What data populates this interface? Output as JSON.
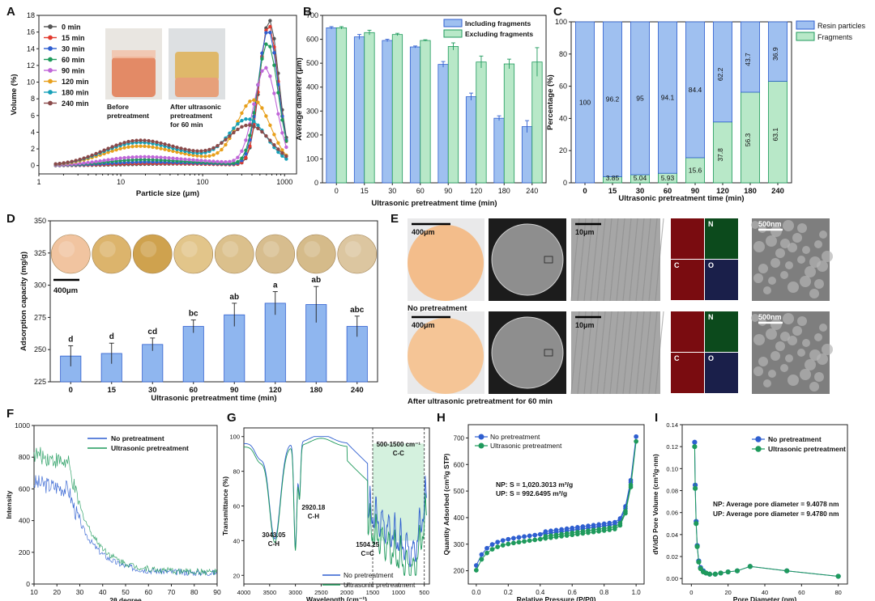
{
  "colors": {
    "blue": "#2f5fd0",
    "blue_fill": "#9fc0f0",
    "green": "#1f9a5c",
    "green_fill": "#b8e8c8",
    "gray": "#555555",
    "red": "#e23a2e",
    "cyan": "#16a0b8",
    "violet": "#c066d8",
    "orange": "#e8a01c",
    "teal": "#2aa89a",
    "maroon": "#8a4a4a",
    "navy": "#3a55b8"
  },
  "panels": {
    "A": {
      "letter": "A",
      "photo_labels": [
        "Before\npretreatment",
        "After ultrasonic\npretreatment\nfor 60 min"
      ]
    },
    "B": {
      "letter": "B"
    },
    "C": {
      "letter": "C"
    },
    "D": {
      "letter": "D",
      "scale_bar": "400μm"
    },
    "E": {
      "letter": "E",
      "rows": [
        {
          "caption": "No pretreatment",
          "scale1": "400μm",
          "scale2": "10μm",
          "scale3": "500nm"
        },
        {
          "caption": "After ultrasonic pretreatment for 60 min",
          "scale1": "400μm",
          "scale2": "10μm",
          "scale3": "500nm"
        }
      ],
      "eds_labels": [
        "N",
        "C",
        "O"
      ]
    },
    "F": {
      "letter": "F"
    },
    "G": {
      "letter": "G"
    },
    "H": {
      "letter": "H"
    },
    "I": {
      "letter": "I"
    }
  },
  "chart_data": [
    {
      "id": "A",
      "type": "line",
      "title": "",
      "xlabel": "Particle size (μm)",
      "ylabel": "Volume (%)",
      "xscale": "log",
      "xlim": [
        1,
        1400
      ],
      "ylim": [
        -1,
        18
      ],
      "x_ticks": [
        1,
        10,
        100,
        1000
      ],
      "x_tick_labels": [
        "1",
        "10",
        "100",
        "1000"
      ],
      "y_ticks": [
        0,
        2,
        4,
        6,
        8,
        10,
        12,
        14,
        16,
        18
      ],
      "legend": "top-left",
      "series": [
        {
          "name": "0 min",
          "color": "#555555",
          "base": 0.2,
          "hump": 0.0,
          "peak": 17.4,
          "px": 650,
          "w": 0.09
        },
        {
          "name": "15 min",
          "color": "#e23a2e",
          "base": 0.2,
          "hump": 0.1,
          "peak": 16.8,
          "px": 640,
          "w": 0.09
        },
        {
          "name": "30 min",
          "color": "#2f5fd0",
          "base": 0.3,
          "hump": 0.2,
          "peak": 16.2,
          "px": 630,
          "w": 0.095
        },
        {
          "name": "60 min",
          "color": "#1f9a5c",
          "base": 0.4,
          "hump": 0.4,
          "peak": 14.6,
          "px": 620,
          "w": 0.1
        },
        {
          "name": "90 min",
          "color": "#c066d8",
          "base": 0.6,
          "hump": 0.6,
          "peak": 11.6,
          "px": 580,
          "w": 0.11
        },
        {
          "name": "120 min",
          "color": "#e8a01c",
          "base": 1.0,
          "hump": 1.6,
          "peak": 7.5,
          "px": 420,
          "w": 0.16
        },
        {
          "name": "180 min",
          "color": "#16a0b8",
          "base": 1.2,
          "hump": 1.9,
          "peak": 5.1,
          "px": 360,
          "w": 0.18
        },
        {
          "name": "240 min",
          "color": "#8a4a4a",
          "base": 1.4,
          "hump": 2.0,
          "peak": 4.3,
          "px": 380,
          "w": 0.2
        }
      ]
    },
    {
      "id": "B",
      "type": "bar",
      "xlabel": "Ultrasonic pretreatment time (min)",
      "ylabel": "Average diameter (μm)",
      "ylim": [
        0,
        700
      ],
      "y_ticks": [
        0,
        100,
        200,
        300,
        400,
        500,
        600,
        700
      ],
      "categories": [
        "0",
        "15",
        "30",
        "60",
        "90",
        "120",
        "180",
        "240"
      ],
      "legend": "top-right",
      "series": [
        {
          "name": "Including fragments",
          "values": [
            648,
            610,
            595,
            568,
            495,
            360,
            270,
            235
          ],
          "err": [
            5,
            10,
            5,
            4,
            12,
            15,
            10,
            25
          ]
        },
        {
          "name": "Excluding fragments",
          "values": [
            648,
            628,
            620,
            595,
            570,
            505,
            497,
            505
          ],
          "err": [
            5,
            10,
            5,
            3,
            15,
            25,
            20,
            60
          ]
        }
      ]
    },
    {
      "id": "C",
      "type": "bar",
      "stacked": true,
      "xlabel": "Ultrasonic pretreatment time (min)",
      "ylabel": "Percentage (%)",
      "ylim": [
        0,
        100
      ],
      "y_ticks": [
        0,
        20,
        40,
        60,
        80,
        100
      ],
      "categories": [
        "0",
        "15",
        "30",
        "60",
        "90",
        "120",
        "180",
        "240"
      ],
      "legend": "top-right",
      "series": [
        {
          "name": "Resin particles",
          "values": [
            100,
            96.2,
            95,
            94.1,
            84.4,
            62.2,
            43.7,
            36.9
          ],
          "labels": [
            "100",
            "96.2",
            "95",
            "94.1",
            "84.4",
            "62.2",
            "43.7",
            "36.9"
          ]
        },
        {
          "name": "Fragments",
          "values": [
            0,
            3.85,
            5.04,
            5.93,
            15.6,
            37.8,
            56.3,
            63.1
          ],
          "labels": [
            "",
            "3.85",
            "5.04",
            "5.93",
            "15.6",
            "37.8",
            "56.3",
            "63.1"
          ]
        }
      ]
    },
    {
      "id": "D",
      "type": "bar",
      "xlabel": "Ultrasonic pretreatment time (min)",
      "ylabel": "Adsorption capacity (mg/g)",
      "ylim": [
        225,
        350
      ],
      "y_ticks": [
        225,
        250,
        275,
        300,
        325,
        350
      ],
      "categories": [
        "0",
        "15",
        "30",
        "60",
        "90",
        "120",
        "180",
        "240"
      ],
      "values": [
        245,
        247,
        254,
        268,
        277,
        286,
        285,
        268
      ],
      "err": [
        8,
        8,
        5,
        5,
        9,
        9,
        14,
        8
      ],
      "letters": [
        "d",
        "d",
        "cd",
        "bc",
        "ab",
        "a",
        "ab",
        "abc"
      ]
    },
    {
      "id": "F",
      "type": "line",
      "xlabel": "2θ degree",
      "ylabel": "Intensity",
      "xlim": [
        10,
        90
      ],
      "ylim": [
        0,
        1000
      ],
      "x_ticks": [
        10,
        20,
        30,
        40,
        50,
        60,
        70,
        80,
        90
      ],
      "y_ticks": [
        0,
        200,
        400,
        600,
        800,
        1000
      ],
      "legend": "top-right",
      "series": [
        {
          "name": "No pretreatment",
          "color": "#2f5fd0",
          "start": 640,
          "mid": 600,
          "end": 70
        },
        {
          "name": "Ultrasonic pretreatment",
          "color": "#1f9a5c",
          "start": 820,
          "mid": 760,
          "end": 75
        }
      ]
    },
    {
      "id": "G",
      "type": "line",
      "xlabel": "Wavelength (cm⁻¹)",
      "ylabel": "Transmittance (%)",
      "xlim": [
        4000,
        400
      ],
      "ylim": [
        15,
        105
      ],
      "x_ticks": [
        4000,
        3500,
        3000,
        2500,
        2000,
        1500,
        1000,
        500
      ],
      "y_ticks": [
        20,
        40,
        60,
        80,
        100
      ],
      "legend": "bottom-right",
      "annotations": [
        {
          "text": "3043.05",
          "sub": "C-H"
        },
        {
          "text": "2920.18",
          "sub": "C-H"
        },
        {
          "text": "1504.25",
          "sub": "C=C"
        },
        {
          "text": "500-1500 cm⁻¹",
          "sub": "C-C"
        }
      ],
      "series": [
        {
          "name": "No pretreatment",
          "color": "#2f5fd0"
        },
        {
          "name": "Ultrasonic pretreatment",
          "color": "#1f9a5c"
        }
      ]
    },
    {
      "id": "H",
      "type": "line",
      "xlabel": "Relative Pressure (P/P0)",
      "ylabel": "Quantity Adsorbed (cm³/g STP)",
      "xlim": [
        -0.05,
        1.05
      ],
      "ylim": [
        150,
        750
      ],
      "x_ticks": [
        0.0,
        0.2,
        0.4,
        0.6,
        0.8,
        1.0
      ],
      "x_tick_labels": [
        "0.0",
        "0.2",
        "0.4",
        "0.6",
        "0.8",
        "1.0"
      ],
      "y_ticks": [
        200,
        300,
        400,
        500,
        600,
        700
      ],
      "legend": "top-left",
      "text": [
        "NP: S = 1,020.3013 m²/g",
        "UP: S = 992.6495 m²/g"
      ],
      "series": [
        {
          "name": "No pretreatment",
          "color": "#2f5fd0",
          "offset": 0
        },
        {
          "name": "Ultrasonic pretreatment",
          "color": "#1f9a5c",
          "offset": -18
        }
      ]
    },
    {
      "id": "I",
      "type": "line",
      "xlabel": "Pore Diameter (nm)",
      "ylabel": "dV/dD Pore Volume (cm³/g·nm)",
      "xlim": [
        -5,
        85
      ],
      "ylim": [
        -0.005,
        0.14
      ],
      "x_ticks": [
        0,
        20,
        40,
        60,
        80
      ],
      "y_ticks": [
        0.0,
        0.02,
        0.04,
        0.06,
        0.08,
        0.1,
        0.12,
        0.14
      ],
      "y_tick_labels": [
        "0.00",
        "0.02",
        "0.04",
        "0.06",
        "0.08",
        "0.10",
        "0.12",
        "0.14"
      ],
      "legend": "top-right",
      "text": [
        "NP: Average pore diameter = 9.4078 nm",
        "UP: Average pore diameter = 9.4780 nm"
      ],
      "series": [
        {
          "name": "No pretreatment",
          "color": "#2f5fd0",
          "x": [
            1.8,
            2.1,
            2.6,
            3.2,
            4,
            5,
            6.5,
            8,
            10,
            13,
            16,
            20,
            25,
            32,
            52,
            80
          ],
          "y": [
            0.124,
            0.085,
            0.052,
            0.03,
            0.016,
            0.01,
            0.007,
            0.005,
            0.004,
            0.004,
            0.005,
            0.006,
            0.007,
            0.011,
            0.007,
            0.002
          ]
        },
        {
          "name": "Ultrasonic pretreatment",
          "color": "#1f9a5c",
          "x": [
            1.8,
            2.1,
            2.6,
            3.2,
            4,
            5,
            6.5,
            8,
            10,
            13,
            16,
            20,
            25,
            32,
            52,
            80
          ],
          "y": [
            0.12,
            0.082,
            0.05,
            0.029,
            0.015,
            0.009,
            0.006,
            0.005,
            0.004,
            0.004,
            0.005,
            0.006,
            0.007,
            0.011,
            0.007,
            0.002
          ]
        }
      ]
    }
  ]
}
